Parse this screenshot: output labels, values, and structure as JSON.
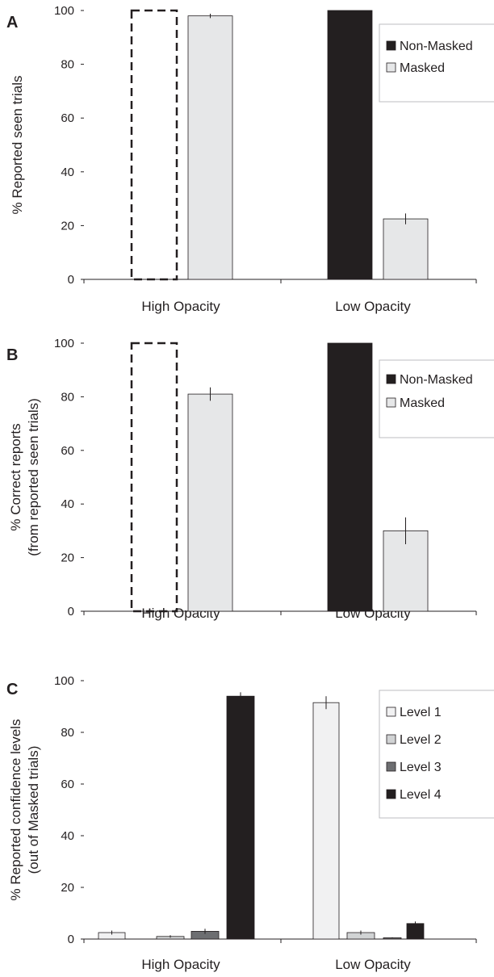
{
  "chart_data": [
    {
      "panel": "A",
      "type": "bar",
      "ylabel": [
        "% Reported seen trials"
      ],
      "ylim": [
        0,
        100
      ],
      "yticks": [
        "0",
        "20",
        "40",
        "60",
        "80",
        "100"
      ],
      "categories": [
        "High Opacity",
        "Low Opacity"
      ],
      "legend_position": "top-right",
      "series": [
        {
          "name": "Non-Masked",
          "color": "#231f20",
          "values": [
            null,
            100
          ],
          "errors": [
            null,
            0
          ]
        },
        {
          "name": "Masked",
          "color": "#e6e7e8",
          "values": [
            98,
            22.5
          ],
          "errors": [
            0.8,
            2
          ]
        }
      ],
      "dashed_placeholder": {
        "category": "High Opacity",
        "series": "Non-Masked",
        "value": 100
      }
    },
    {
      "panel": "B",
      "type": "bar",
      "ylabel": [
        "% Correct reports",
        "(from reported seen trials)"
      ],
      "ylim": [
        0,
        100
      ],
      "yticks": [
        "0",
        "20",
        "40",
        "60",
        "80",
        "100"
      ],
      "categories": [
        "High Opacity",
        "Low Opacity"
      ],
      "legend_position": "top-right",
      "series": [
        {
          "name": "Non-Masked",
          "color": "#231f20",
          "values": [
            null,
            100
          ],
          "errors": [
            null,
            0
          ]
        },
        {
          "name": "Masked",
          "color": "#e6e7e8",
          "values": [
            81,
            30
          ],
          "errors": [
            2.5,
            5
          ]
        }
      ],
      "dashed_placeholder": {
        "category": "High Opacity",
        "series": "Non-Masked",
        "value": 100
      }
    },
    {
      "panel": "C",
      "type": "bar",
      "ylabel": [
        "% Reported confidence levels",
        "(out of Masked trials)"
      ],
      "ylim": [
        0,
        100
      ],
      "yticks": [
        "0",
        "20",
        "40",
        "60",
        "80",
        "100"
      ],
      "categories": [
        "High Opacity",
        "Low Opacity"
      ],
      "legend_position": "top-right",
      "series": [
        {
          "name": "Level 1",
          "color": "#f1f1f2",
          "values": [
            2.5,
            91.5
          ],
          "errors": [
            0.8,
            2.5
          ]
        },
        {
          "name": "Level 2",
          "color": "#d1d3d4",
          "values": [
            1,
            2.5
          ],
          "errors": [
            0.5,
            0.8
          ]
        },
        {
          "name": "Level 3",
          "color": "#6d6e71",
          "values": [
            3,
            0.5
          ],
          "errors": [
            1,
            0.2
          ]
        },
        {
          "name": "Level 4",
          "color": "#231f20",
          "values": [
            94,
            6
          ],
          "errors": [
            1.5,
            0.8
          ]
        }
      ]
    }
  ]
}
